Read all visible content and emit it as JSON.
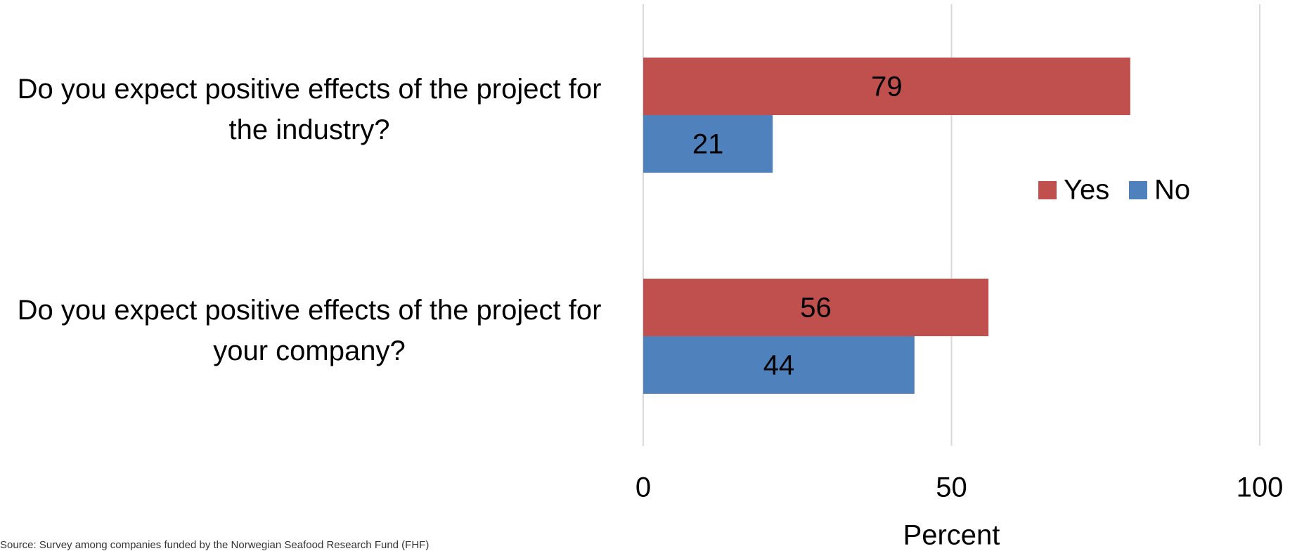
{
  "chart_data": {
    "type": "barh",
    "categories": [
      "Do you expect positive effects of the project for the industry?",
      "Do you expect positive effects of the project for your company?"
    ],
    "series": [
      {
        "name": "Yes",
        "color": "#c0504d",
        "values": [
          79,
          56
        ]
      },
      {
        "name": "No",
        "color": "#4f81bd",
        "values": [
          21,
          44
        ]
      }
    ],
    "xlim": [
      0,
      100
    ],
    "xticks": [
      0,
      50,
      100
    ],
    "xlabel": "Percent",
    "grid": true,
    "legend": "right",
    "note": "Source: Survey among companies funded by the Norwegian Seafood Research Fund (FHF)"
  }
}
